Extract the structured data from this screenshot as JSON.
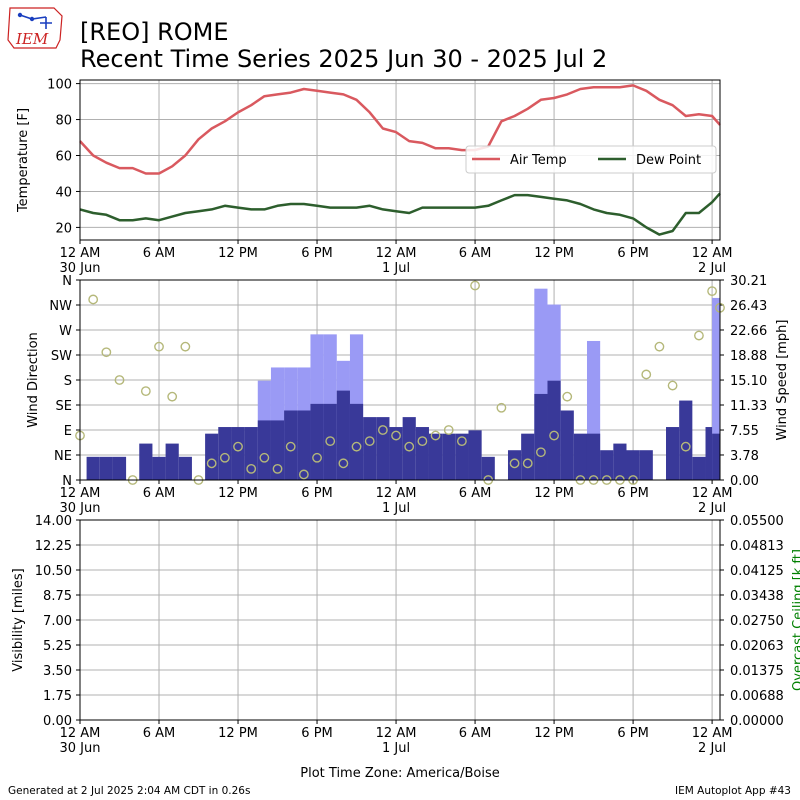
{
  "header": {
    "title": "[REO] ROME",
    "subtitle": "Recent Time Series 2025 Jun 30 - 2025 Jul 2",
    "logo_text": "IEM"
  },
  "footer": {
    "left": "Generated at 2 Jul 2025 2:04 AM CDT in 0.26s",
    "right": "IEM Autoplot App #43",
    "xaxis_title": "Plot Time Zone: America/Boise"
  },
  "x_ticks": {
    "hours": [
      0,
      6,
      12,
      18,
      24,
      30,
      36,
      42,
      48
    ],
    "labels": [
      "12 AM",
      "6 AM",
      "12 PM",
      "6 PM",
      "12 AM",
      "6 AM",
      "12 PM",
      "6 PM",
      "12 AM"
    ],
    "date_labels": [
      {
        "hour": 0,
        "text": "30 Jun"
      },
      {
        "hour": 24,
        "text": "1 Jul"
      },
      {
        "hour": 48,
        "text": "2 Jul"
      }
    ],
    "xlim": [
      0,
      48.6
    ]
  },
  "colors": {
    "air_temp": "#d9595f",
    "dew_point": "#2d5e2d",
    "gust": "#9a9af5",
    "sustained": "#393999",
    "direction_marker": "#b5b87a",
    "ceiling_axis": "#008000",
    "grid": "#b0b0b0"
  },
  "chart_data": [
    {
      "type": "line",
      "ylabel": "Temperature [F]",
      "ylim": [
        13,
        102
      ],
      "yticks": [
        20,
        40,
        60,
        80,
        100
      ],
      "grid": true,
      "legend": {
        "placement": "right",
        "entries": [
          "Air Temp",
          "Dew Point"
        ]
      },
      "x": [
        0,
        1,
        2,
        3,
        4,
        5,
        6,
        7,
        8,
        9,
        10,
        11,
        12,
        13,
        14,
        15,
        16,
        17,
        18,
        19,
        20,
        21,
        22,
        23,
        24,
        25,
        26,
        27,
        28,
        29,
        30,
        31,
        32,
        33,
        34,
        35,
        36,
        37,
        38,
        39,
        40,
        41,
        42,
        43,
        44,
        45,
        46,
        47,
        48,
        48.6
      ],
      "series": [
        {
          "name": "Air Temp",
          "values": [
            68,
            60,
            56,
            53,
            53,
            50,
            50,
            54,
            60,
            69,
            75,
            79,
            84,
            88,
            93,
            94,
            95,
            97,
            96,
            95,
            94,
            91,
            84,
            75,
            73,
            68,
            67,
            64,
            64,
            63,
            63,
            65,
            79,
            82,
            86,
            91,
            92,
            94,
            97,
            98,
            98,
            98,
            99,
            96,
            91,
            88,
            82,
            83,
            82,
            77
          ]
        },
        {
          "name": "Dew Point",
          "values": [
            30,
            28,
            27,
            24,
            24,
            25,
            24,
            26,
            28,
            29,
            30,
            32,
            31,
            30,
            30,
            32,
            33,
            33,
            32,
            31,
            31,
            31,
            32,
            30,
            29,
            28,
            31,
            31,
            31,
            31,
            31,
            32,
            35,
            38,
            38,
            37,
            36,
            35,
            33,
            30,
            28,
            27,
            25,
            20,
            16,
            18,
            28,
            28,
            34,
            39
          ]
        }
      ]
    },
    {
      "type": "bar",
      "ylabel": "Wind Direction",
      "y2label": "Wind Speed [mph]",
      "direction_ticks": [
        "N",
        "NE",
        "E",
        "SE",
        "S",
        "SW",
        "W",
        "NW",
        "N"
      ],
      "ylim": [
        0,
        360
      ],
      "y2lim": [
        0,
        30.21
      ],
      "y2ticks": [
        0.0,
        3.78,
        7.55,
        11.33,
        15.1,
        18.88,
        22.66,
        26.43,
        30.21
      ],
      "grid": true,
      "bar_start_hours": [
        0.5,
        1.5,
        2.5,
        3.5,
        4.5,
        5.5,
        6.5,
        7.5,
        8.5,
        9.5,
        10.5,
        11.5,
        12.5,
        13.5,
        14.5,
        15.5,
        16.5,
        17.5,
        18.5,
        19.5,
        20.5,
        21.5,
        22.5,
        23.5,
        24.5,
        25.5,
        26.5,
        27.5,
        28.5,
        29.5,
        30.5,
        31.5,
        32.5,
        33.5,
        34.5,
        35.5,
        36.5,
        37.5,
        38.5,
        39.5,
        40.5,
        41.5,
        42.5,
        43.5,
        44.5,
        45.5,
        46.5,
        47.5,
        48.0
      ],
      "bar_width_hours": [
        1,
        1,
        1,
        1,
        1,
        1,
        1,
        1,
        1,
        1,
        1,
        1,
        1,
        1,
        1,
        1,
        1,
        1,
        1,
        1,
        1,
        1,
        1,
        1,
        1,
        1,
        1,
        1,
        1,
        1,
        1,
        1,
        1,
        1,
        1,
        1,
        1,
        1,
        1,
        1,
        1,
        1,
        1,
        1,
        1,
        1,
        1,
        0.5,
        0.6
      ],
      "sustained_mph": [
        3.5,
        3.5,
        3.5,
        0,
        5.5,
        3.5,
        5.5,
        3.5,
        0,
        7,
        8,
        8,
        8,
        9,
        9,
        10.5,
        10.5,
        11.5,
        11.5,
        13.5,
        11.5,
        9.5,
        9.5,
        8,
        9.5,
        8,
        7,
        7,
        7,
        7.5,
        3.5,
        0,
        4.5,
        7,
        13,
        15,
        10.5,
        7,
        7,
        4.5,
        5.5,
        4.5,
        4.5,
        0,
        8,
        12,
        3.5,
        8,
        7
      ],
      "gust_mph": [
        0,
        0,
        0,
        0,
        0,
        0,
        0,
        0,
        0,
        0,
        0,
        0,
        0,
        15,
        17,
        17,
        17,
        22,
        22,
        18,
        22,
        0,
        0,
        0,
        0,
        0,
        0,
        0,
        0,
        0,
        0,
        0,
        0,
        0,
        28.9,
        26.5,
        0,
        0,
        21,
        0,
        0,
        0,
        0,
        0,
        0,
        0,
        0,
        0,
        27.5
      ],
      "direction_hours": [
        0,
        1,
        2,
        3,
        4,
        5,
        6,
        7,
        8,
        9,
        10,
        11,
        12,
        13,
        14,
        15,
        16,
        17,
        18,
        19,
        20,
        21,
        22,
        23,
        24,
        25,
        26,
        27,
        28,
        29,
        30,
        31,
        32,
        33,
        34,
        35,
        36,
        37,
        38,
        39,
        40,
        41,
        42,
        43,
        44,
        45,
        46,
        47,
        48,
        48.6
      ],
      "direction_deg": [
        80,
        325,
        230,
        180,
        0,
        160,
        240,
        150,
        240,
        0,
        30,
        40,
        60,
        20,
        40,
        20,
        60,
        10,
        40,
        70,
        30,
        60,
        70,
        90,
        80,
        60,
        70,
        80,
        90,
        70,
        350,
        0,
        130,
        30,
        30,
        50,
        80,
        150,
        0,
        0,
        0,
        0,
        0,
        190,
        240,
        170,
        60,
        260,
        340,
        310
      ]
    },
    {
      "type": "line",
      "ylabel": "Visibility [miles]",
      "y2label": "Overcast Ceiling [k ft]",
      "ylim": [
        0,
        14
      ],
      "yticks": [
        0.0,
        1.75,
        3.5,
        5.25,
        7.0,
        8.75,
        10.5,
        12.25,
        14.0
      ],
      "y2lim": [
        0,
        0.055
      ],
      "y2ticks": [
        0.0,
        0.00688,
        0.01375,
        0.02063,
        0.0275,
        0.03438,
        0.04125,
        0.04813,
        0.055
      ],
      "grid": true,
      "series": []
    }
  ]
}
